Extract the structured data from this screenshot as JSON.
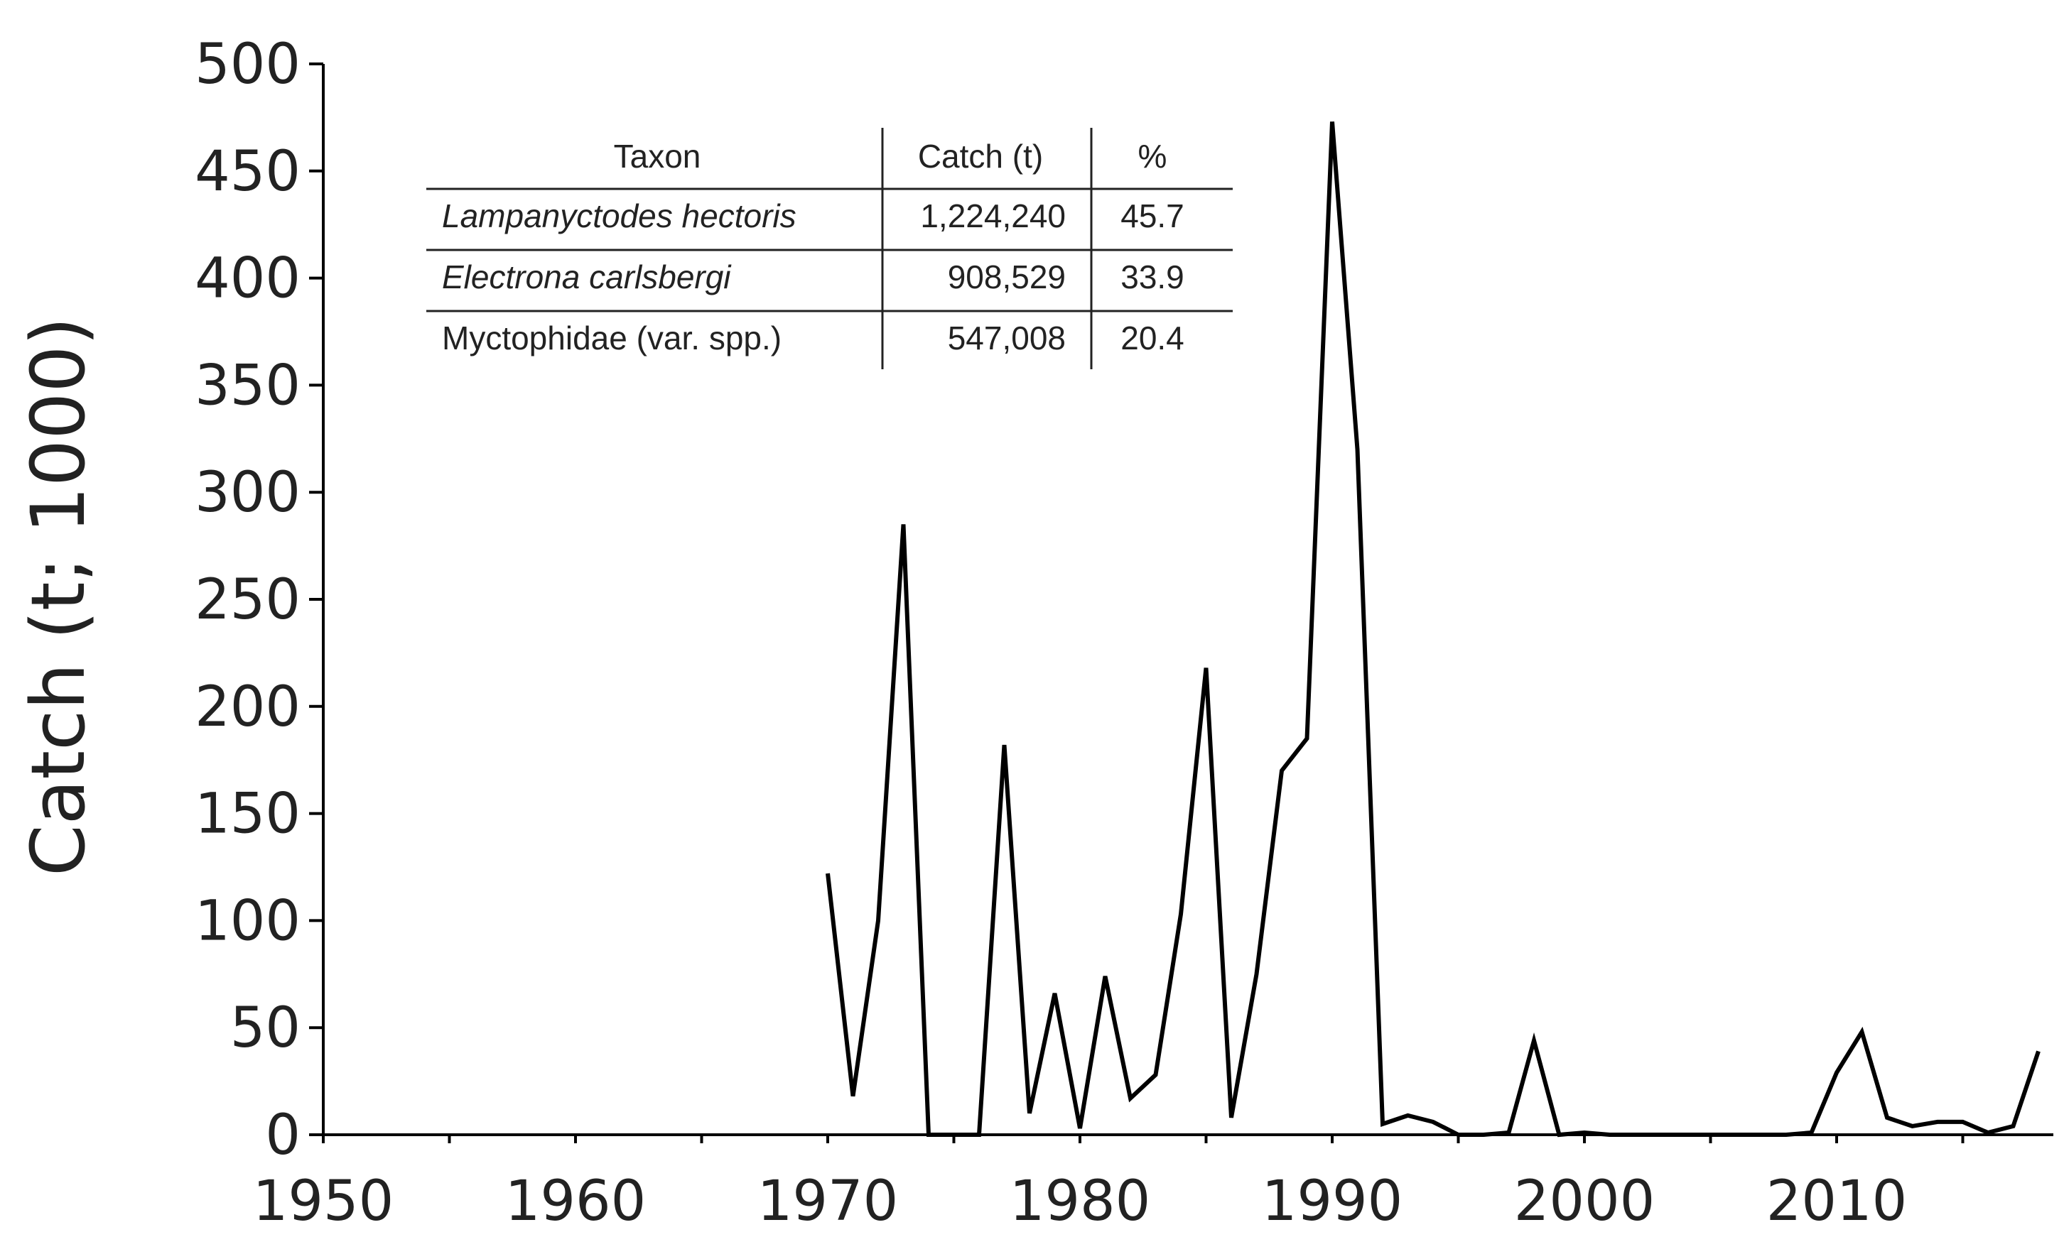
{
  "chart_data": {
    "type": "line",
    "title": "",
    "xlabel": "",
    "ylabel": "Catch (t; 1000)",
    "xlim": [
      1950,
      2018
    ],
    "ylim": [
      0,
      500
    ],
    "x_ticks": [
      1950,
      1960,
      1970,
      1980,
      1990,
      2000,
      2010
    ],
    "y_ticks": [
      0,
      50,
      100,
      150,
      200,
      250,
      300,
      350,
      400,
      450,
      500
    ],
    "grid": false,
    "series": [
      {
        "name": "",
        "color": "#000000",
        "x": [
          1970,
          1971,
          1972,
          1973,
          1974,
          1975,
          1976,
          1977,
          1978,
          1979,
          1980,
          1981,
          1982,
          1983,
          1984,
          1985,
          1986,
          1987,
          1988,
          1989,
          1990,
          1991,
          1992,
          1993,
          1994,
          1995,
          1996,
          1997,
          1998,
          1999,
          2000,
          2001,
          2002,
          2003,
          2004,
          2005,
          2006,
          2007,
          2008,
          2009,
          2010,
          2011,
          2012,
          2013,
          2014,
          2015,
          2016,
          2017,
          2018
        ],
        "y": [
          122,
          18,
          100,
          285,
          0,
          0,
          0,
          182,
          10,
          66,
          3,
          74,
          17,
          28,
          103,
          218,
          8,
          75,
          170,
          185,
          473,
          320,
          5,
          9,
          6,
          0,
          0,
          1,
          44,
          0,
          1,
          0,
          0,
          0,
          0,
          0,
          0,
          0,
          0,
          1,
          29,
          48,
          8,
          4,
          6,
          6,
          1,
          4,
          39
        ]
      }
    ],
    "inset_table": {
      "headers": [
        "Taxon",
        "Catch (t)",
        "%"
      ],
      "rows": [
        {
          "taxon": "Lampanyctodes hectoris",
          "catch": "1,224,240",
          "pct": "45.7"
        },
        {
          "taxon": "Electrona carlsbergi",
          "catch": "908,529",
          "pct": "33.9"
        },
        {
          "taxon": "Myctophidae (var. spp.)",
          "catch": "547,008",
          "pct": "20.4"
        }
      ]
    }
  }
}
